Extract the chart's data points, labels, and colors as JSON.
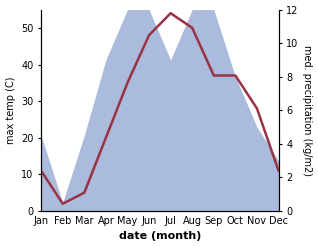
{
  "months": [
    "Jan",
    "Feb",
    "Mar",
    "Apr",
    "May",
    "Jun",
    "Jul",
    "Aug",
    "Sep",
    "Oct",
    "Nov",
    "Dec"
  ],
  "temperature": [
    11,
    2,
    5,
    20,
    35,
    48,
    54,
    50,
    37,
    37,
    28,
    11
  ],
  "precipitation": [
    4.5,
    0.5,
    4.5,
    9.0,
    12.0,
    12.0,
    9.0,
    12.0,
    12.0,
    8.0,
    5.0,
    3.0
  ],
  "temp_color": "#993344",
  "precip_color": "#aabbdd",
  "ylabel_left": "max temp (C)",
  "ylabel_right": "med. precipitation (kg/m2)",
  "xlabel": "date (month)",
  "ylim_left": [
    0,
    55
  ],
  "ylim_right": [
    0,
    12
  ],
  "yticks_left": [
    0,
    10,
    20,
    30,
    40,
    50
  ],
  "yticks_right": [
    0,
    2,
    4,
    6,
    8,
    10,
    12
  ],
  "temp_scale_factor": 4.583,
  "background_color": "#ffffff",
  "temp_linewidth": 1.8
}
